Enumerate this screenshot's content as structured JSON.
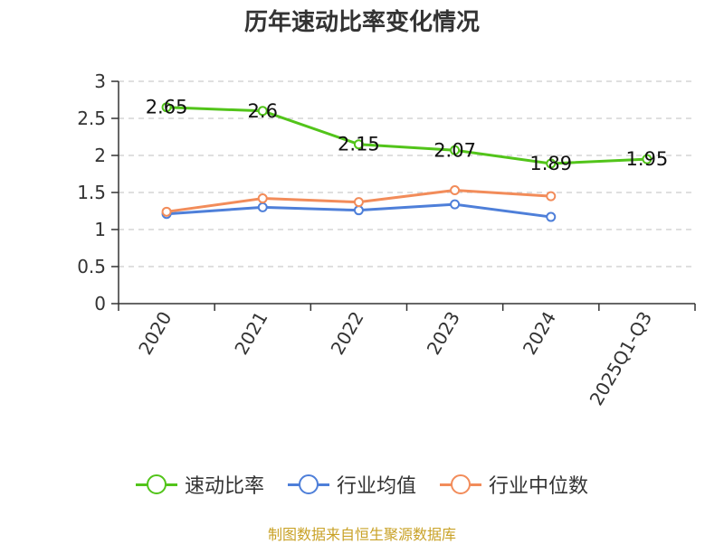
{
  "chart_data": {
    "type": "line",
    "title": "历年速动比率变化情况",
    "categories": [
      "2020",
      "2021",
      "2022",
      "2023",
      "2024",
      "2025Q1-Q3"
    ],
    "ylim": [
      0,
      3
    ],
    "yticks": [
      "0",
      "0.5",
      "1",
      "1.5",
      "2",
      "2.5",
      "3"
    ],
    "grid": true,
    "legend_position": "bottom",
    "series": [
      {
        "name": "速动比率",
        "color": "#52c41a",
        "values": [
          2.65,
          2.6,
          2.15,
          2.07,
          1.89,
          1.95
        ],
        "labels": [
          "2.65",
          "2.6",
          "2.15",
          "2.07",
          "1.89",
          "1.95"
        ]
      },
      {
        "name": "行业均值",
        "color": "#4e7fd9",
        "values": [
          1.21,
          1.3,
          1.26,
          1.34,
          1.17,
          null
        ]
      },
      {
        "name": "行业中位数",
        "color": "#f28c5a",
        "values": [
          1.24,
          1.42,
          1.37,
          1.53,
          1.45,
          null
        ]
      }
    ],
    "source": "制图数据来自恒生聚源数据库"
  }
}
